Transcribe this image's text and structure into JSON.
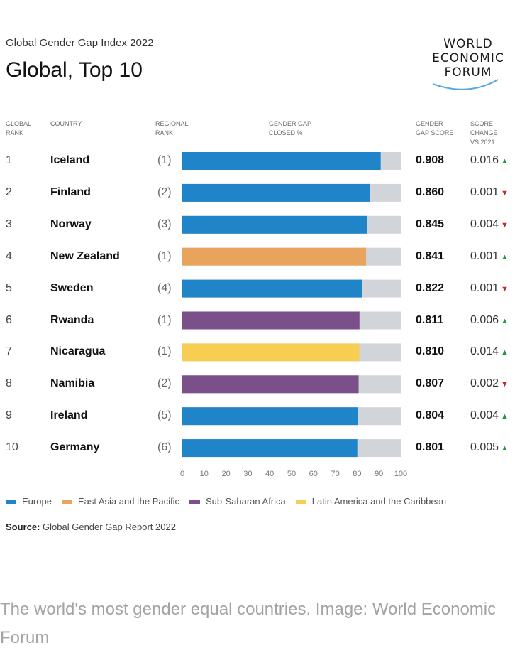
{
  "header": {
    "subtitle": "Global Gender Gap Index 2022",
    "title": "Global, Top 10"
  },
  "logo": {
    "line1": "WORLD",
    "line2": "ECONOMIC",
    "line3": "FORUM"
  },
  "columns": {
    "global_rank": "GLOBAL\nRANK",
    "country": "COUNTRY",
    "regional_rank": "REGIONAL\nRANK",
    "gap_closed": "GENDER GAP\nCLOSED %",
    "gap_score": "GENDER\nGAP SCORE",
    "score_change": "SCORE\nCHANGE\nVS 2021"
  },
  "chart_data": {
    "type": "bar",
    "orientation": "horizontal",
    "title": "Global, Top 10",
    "xlabel": "Gender gap closed %",
    "xlim": [
      0,
      100
    ],
    "xticks": [
      0,
      10,
      20,
      30,
      40,
      50,
      60,
      70,
      80,
      90,
      100
    ],
    "categories": [
      "Iceland",
      "Finland",
      "Norway",
      "New Zealand",
      "Sweden",
      "Rwanda",
      "Nicaragua",
      "Namibia",
      "Ireland",
      "Germany"
    ],
    "values": [
      90.8,
      86.0,
      84.5,
      84.1,
      82.2,
      81.1,
      81.0,
      80.7,
      80.4,
      80.1
    ],
    "rows": [
      {
        "rank": "1",
        "country": "Iceland",
        "regional": "(1)",
        "region": "Europe",
        "score": "0.908",
        "change": "0.016",
        "dir": "up"
      },
      {
        "rank": "2",
        "country": "Finland",
        "regional": "(2)",
        "region": "Europe",
        "score": "0.860",
        "change": "0.001",
        "dir": "down"
      },
      {
        "rank": "3",
        "country": "Norway",
        "regional": "(3)",
        "region": "Europe",
        "score": "0.845",
        "change": "0.004",
        "dir": "down"
      },
      {
        "rank": "4",
        "country": "New Zealand",
        "regional": "(1)",
        "region": "East Asia and the Pacific",
        "score": "0.841",
        "change": "0.001",
        "dir": "up"
      },
      {
        "rank": "5",
        "country": "Sweden",
        "regional": "(4)",
        "region": "Europe",
        "score": "0.822",
        "change": "0.001",
        "dir": "down"
      },
      {
        "rank": "6",
        "country": "Rwanda",
        "regional": "(1)",
        "region": "Sub-Saharan Africa",
        "score": "0.811",
        "change": "0.006",
        "dir": "up"
      },
      {
        "rank": "7",
        "country": "Nicaragua",
        "regional": "(1)",
        "region": "Latin America and the Caribbean",
        "score": "0.810",
        "change": "0.014",
        "dir": "up"
      },
      {
        "rank": "8",
        "country": "Namibia",
        "regional": "(2)",
        "region": "Sub-Saharan Africa",
        "score": "0.807",
        "change": "0.002",
        "dir": "down"
      },
      {
        "rank": "9",
        "country": "Ireland",
        "regional": "(5)",
        "region": "Europe",
        "score": "0.804",
        "change": "0.004",
        "dir": "up"
      },
      {
        "rank": "10",
        "country": "Germany",
        "regional": "(6)",
        "region": "Europe",
        "score": "0.801",
        "change": "0.005",
        "dir": "up"
      }
    ],
    "legend": [
      {
        "name": "Europe",
        "color": "#1f84c8"
      },
      {
        "name": "East Asia and the Pacific",
        "color": "#e8a45c"
      },
      {
        "name": "Sub-Saharan Africa",
        "color": "#7b4f8a"
      },
      {
        "name": "Latin America and the Caribbean",
        "color": "#f7cd52"
      }
    ],
    "remainder_color": "#d1d5da"
  },
  "source": {
    "label": "Source:",
    "text": "Global Gender Gap Report 2022"
  },
  "caption": "The world's most gender equal countries. Image: World Economic Forum"
}
